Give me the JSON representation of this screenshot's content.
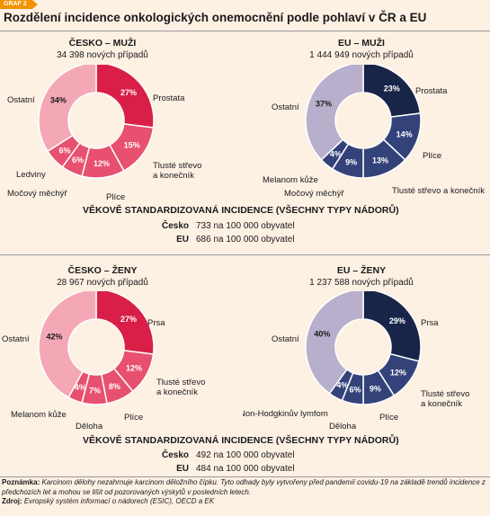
{
  "graf_label": "GRAF 2",
  "title": "Rozdělení incidence onkologických onemocnění podle pohlaví v ČR a EU",
  "colors": {
    "cz_main": "#d91f47",
    "cz_mid": "#e8506f",
    "cz_light": "#f4a8b6",
    "eu_main": "#182548",
    "eu_mid": "#34427a",
    "eu_light": "#b7afcb",
    "accent": "#f39200"
  },
  "chart_data": [
    {
      "type": "pie",
      "title": "ČESKO – MUŽI",
      "subtitle": "34 398 nových případů",
      "series": [
        {
          "label": "Prostata",
          "value": 27,
          "value_label": "27%"
        },
        {
          "label": "Tlusté střevo a konečník",
          "value": 15,
          "value_label": "15%"
        },
        {
          "label": "Plíce",
          "value": 12,
          "value_label": "12%"
        },
        {
          "label": "Močový měchýř",
          "value": 6,
          "value_label": "6%"
        },
        {
          "label": "Ledviny",
          "value": 6,
          "value_label": "6%"
        },
        {
          "label": "Ostatní",
          "value": 34,
          "value_label": "34%"
        }
      ]
    },
    {
      "type": "pie",
      "title": "EU – MUŽI",
      "subtitle": "1 444 949 nových případů",
      "series": [
        {
          "label": "Prostata",
          "value": 23,
          "value_label": "23%"
        },
        {
          "label": "Plíce",
          "value": 14,
          "value_label": "14%"
        },
        {
          "label": "Tlusté střevo a konečník",
          "value": 13,
          "value_label": "13%"
        },
        {
          "label": "Močový měchýř",
          "value": 9,
          "value_label": "9%"
        },
        {
          "label": "Melanom kůže",
          "value": 4,
          "value_label": "4%"
        },
        {
          "label": "Ostatní",
          "value": 37,
          "value_label": "37%"
        }
      ]
    },
    {
      "type": "pie",
      "title": "ČESKO – ŽENY",
      "subtitle": "28 967 nových případů",
      "series": [
        {
          "label": "Prsa",
          "value": 27,
          "value_label": "27%"
        },
        {
          "label": "Tlusté střevo a konečník",
          "value": 12,
          "value_label": "12%"
        },
        {
          "label": "Plíce",
          "value": 8,
          "value_label": "8%"
        },
        {
          "label": "Děloha",
          "value": 7,
          "value_label": "7%"
        },
        {
          "label": "Melanom kůže",
          "value": 4,
          "value_label": "4%"
        },
        {
          "label": "Ostatní",
          "value": 42,
          "value_label": "42%"
        }
      ]
    },
    {
      "type": "pie",
      "title": "EU – ŽENY",
      "subtitle": "1 237 588 nových případů",
      "series": [
        {
          "label": "Prsa",
          "value": 29,
          "value_label": "29%"
        },
        {
          "label": "Tlusté střevo a konečník",
          "value": 12,
          "value_label": "12%"
        },
        {
          "label": "Plíce",
          "value": 9,
          "value_label": "9%"
        },
        {
          "label": "Děloha",
          "value": 6,
          "value_label": "6%"
        },
        {
          "label": "Non-Hodgkinův lymfom",
          "value": 4,
          "value_label": "4%"
        },
        {
          "label": "Ostatní",
          "value": 40,
          "value_label": "40%"
        }
      ]
    }
  ],
  "standardized": [
    {
      "title": "VĚKOVĚ STANDARDIZOVANÁ INCIDENCE (VŠECHNY TYPY NÁDORŮ)",
      "rows": [
        {
          "region": "Česko",
          "value": "733 na 100 000 obyvatel"
        },
        {
          "region": "EU",
          "value": "686 na 100 000 obyvatel"
        }
      ]
    },
    {
      "title": "VĚKOVĚ STANDARDIZOVANÁ INCIDENCE (VŠECHNY TYPY NÁDORŮ)",
      "rows": [
        {
          "region": "Česko",
          "value": "492 na 100 000 obyvatel"
        },
        {
          "region": "EU",
          "value": "484 na 100 000 obyvatel"
        }
      ]
    }
  ],
  "note": {
    "label": "Poznámka:",
    "text": "Karcinom dělohy nezahrnuje karcinom děložního čípku. Tyto odhady byly vytvořeny před pandemií covidu-19 na základě trendů incidence z předchozích let a mohou se lišit od pozorovaných výskytů v posledních letech."
  },
  "source": {
    "label": "Zdroj:",
    "text": "Evropský systém informací o nádorech (ESIC), OECD a EK"
  }
}
